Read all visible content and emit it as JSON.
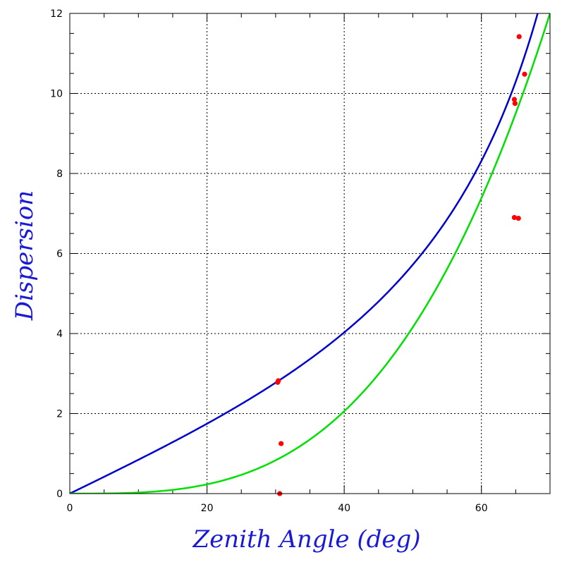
{
  "chart_data": {
    "type": "scatter",
    "xlabel": "Zenith Angle (deg)",
    "ylabel": "Dispersion",
    "xlim": [
      0,
      70
    ],
    "ylim": [
      0,
      12
    ],
    "x_ticks": [
      0,
      20,
      40,
      60
    ],
    "y_ticks": [
      0,
      2,
      4,
      6,
      8,
      10,
      12
    ],
    "grid": true,
    "colors": {
      "points": "#ff0000",
      "curve_tan": "#0000cc",
      "curve_poly": "#00e000",
      "title": "#1a1ad6"
    },
    "points": [
      {
        "x": 30.4,
        "y": 2.82
      },
      {
        "x": 30.3,
        "y": 2.78
      },
      {
        "x": 30.8,
        "y": 1.25
      },
      {
        "x": 30.6,
        "y": 0.0
      },
      {
        "x": 64.8,
        "y": 9.85
      },
      {
        "x": 64.9,
        "y": 9.75
      },
      {
        "x": 65.5,
        "y": 11.42
      },
      {
        "x": 66.3,
        "y": 10.48
      },
      {
        "x": 64.8,
        "y": 6.9
      },
      {
        "x": 65.4,
        "y": 6.88
      }
    ],
    "curves": [
      {
        "model": "tan",
        "coef": 4.8,
        "max_x": 69.5
      },
      {
        "model": "poly",
        "coef": 1.85e-05,
        "power": 3.15,
        "max_x": 70
      }
    ]
  }
}
